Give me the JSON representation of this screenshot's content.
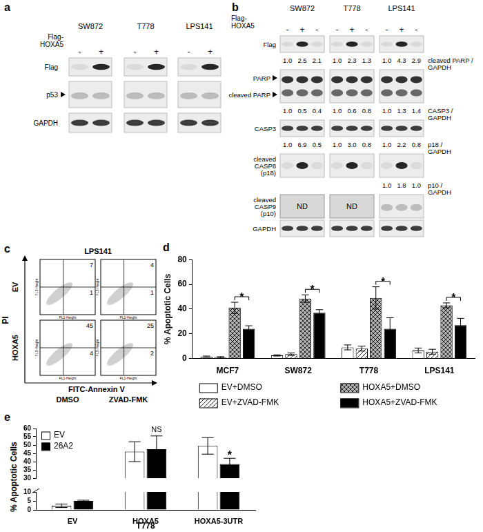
{
  "figure": {
    "a": {
      "label": "a",
      "cell_lines": [
        "SW872",
        "T778",
        "LPS141"
      ],
      "treatment": [
        "Flag-",
        "HOXA5"
      ],
      "lanes": [
        "-",
        "+"
      ],
      "rows": [
        "Flag",
        "p53",
        "GAPDH"
      ],
      "arrow_rows": [
        "p53"
      ]
    },
    "b": {
      "label": "b",
      "cell_lines": [
        "SW872",
        "T778",
        "LPS141"
      ],
      "treatment": [
        "Flag-",
        "HOXA5"
      ],
      "lanes": [
        "-",
        "+",
        "-"
      ],
      "rows": [
        {
          "blot": [
            "Flag"
          ]
        },
        {
          "ratio": [
            "cleaved PARP /",
            "GAPDH"
          ],
          "values": [
            [
              "1.0",
              "2.5",
              "2.1"
            ],
            [
              "1.0",
              "2.3",
              "1.3"
            ],
            [
              "1.0",
              "4.3",
              "2.9"
            ]
          ]
        },
        {
          "blot": [
            "PARP",
            "cleaved PARP"
          ],
          "arrows": true
        },
        {
          "ratio": [
            "CASP3 /",
            "GAPDH"
          ],
          "values": [
            [
              "1.0",
              "0.5",
              "0.4"
            ],
            [
              "1.0",
              "0.6",
              "0.8"
            ],
            [
              "1.0",
              "1.3",
              "1.4"
            ]
          ]
        },
        {
          "blot": [
            "CASP3"
          ]
        },
        {
          "ratio": [
            "p18 /",
            "GAPDH"
          ],
          "values": [
            [
              "1.0",
              "6.9",
              "0.5"
            ],
            [
              "1.0",
              "3.0",
              "0.8"
            ],
            [
              "1.0",
              "2.2",
              "0.8"
            ]
          ]
        },
        {
          "blot": [
            "cleaved",
            "CASP8",
            "(p18)"
          ]
        },
        {
          "ratio": [
            "p10 /",
            "GAPDH"
          ],
          "values": [
            null,
            null,
            [
              "1.0",
              "1.8",
              "1.0"
            ]
          ]
        },
        {
          "blot": [
            "cleaved",
            "CASP9",
            "(p10)"
          ],
          "not_detected": [
            "ND",
            "ND",
            null
          ]
        },
        {
          "blot": [
            "GAPDH"
          ]
        }
      ]
    },
    "c": {
      "label": "c",
      "title": "LPS141",
      "rows": [
        "EV",
        "HOXA5"
      ],
      "columns": [
        "DMSO",
        "ZVAD-FMK"
      ],
      "x_label": "FITC-Annexin V",
      "y_label": "PI",
      "plot_x_label": "FL1-Height",
      "plot_y_label": "FL3-Height",
      "quadrants": [
        [
          {
            "upper_right": 7,
            "lower_right": 1
          },
          {
            "upper_right": 4,
            "lower_right": 1
          }
        ],
        [
          {
            "upper_right": 45,
            "lower_right": 4
          },
          {
            "upper_right": 25,
            "lower_right": 2
          }
        ]
      ]
    }
  },
  "chart_data": [
    {
      "type": "bar",
      "panel_label": "d",
      "categories": [
        "MCF7",
        "SW872",
        "T778",
        "LPS141"
      ],
      "y_label": "% Apoptotic Cells",
      "ylim": [
        0,
        80
      ],
      "yticks": [
        0,
        20,
        40,
        60,
        80
      ],
      "legend": "bottom",
      "series": [
        {
          "name": "EV+DMSO",
          "color": "#ffffff",
          "values": [
            1.5,
            2.5,
            9,
            6.5
          ],
          "errors": [
            0.5,
            0.5,
            2,
            2
          ]
        },
        {
          "name": "EV+ZVAD-FMK",
          "color": "#ffffff",
          "values": [
            1,
            3.5,
            8,
            5.5
          ],
          "errors": [
            0.5,
            1,
            2,
            2
          ]
        },
        {
          "name": "HOXA5+DMSO",
          "color": "#b4b4b4",
          "values": [
            41,
            48.5,
            49,
            43
          ],
          "errors": [
            4.5,
            3,
            9,
            2
          ]
        },
        {
          "name": "HOXA5+ZVAD-FMK",
          "color": "#000000",
          "values": [
            24,
            37,
            24,
            27
          ],
          "errors": [
            2.5,
            2.5,
            9,
            5.5
          ]
        }
      ],
      "annotations": [
        {
          "text": "*",
          "category": "MCF7",
          "between": [
            "HOXA5+DMSO",
            "HOXA5+ZVAD-FMK"
          ]
        },
        {
          "text": "*",
          "category": "SW872",
          "between": [
            "HOXA5+DMSO",
            "HOXA5+ZVAD-FMK"
          ]
        },
        {
          "text": "*",
          "category": "T778",
          "between": [
            "HOXA5+DMSO",
            "HOXA5+ZVAD-FMK"
          ]
        },
        {
          "text": "*",
          "category": "LPS141",
          "between": [
            "HOXA5+DMSO",
            "HOXA5+ZVAD-FMK"
          ]
        }
      ]
    },
    {
      "type": "bar",
      "panel_label": "e",
      "categories": [
        "EV",
        "HOXA5",
        "HOXA5-3UTR"
      ],
      "x_label": "T778",
      "y_label": "% Apoptotic Cells",
      "ylim": [
        0,
        60
      ],
      "axis_break": [
        10,
        30
      ],
      "yticks": [
        0,
        5,
        10,
        30,
        35,
        40,
        45,
        50,
        55,
        60
      ],
      "legend": "top-left",
      "series": [
        {
          "name": "EV",
          "color": "#ffffff",
          "values": [
            2.3,
            46,
            49.5
          ],
          "errors": [
            1,
            6,
            5
          ]
        },
        {
          "name": "26A2",
          "color": "#000000",
          "values": [
            5,
            47.5,
            38.5
          ],
          "errors": [
            0.4,
            8,
            3.5
          ]
        }
      ],
      "annotations": [
        {
          "text": "NS",
          "category": "HOXA5",
          "series": "26A2"
        },
        {
          "text": "*",
          "category": "HOXA5-3UTR",
          "series": "26A2"
        }
      ]
    }
  ]
}
